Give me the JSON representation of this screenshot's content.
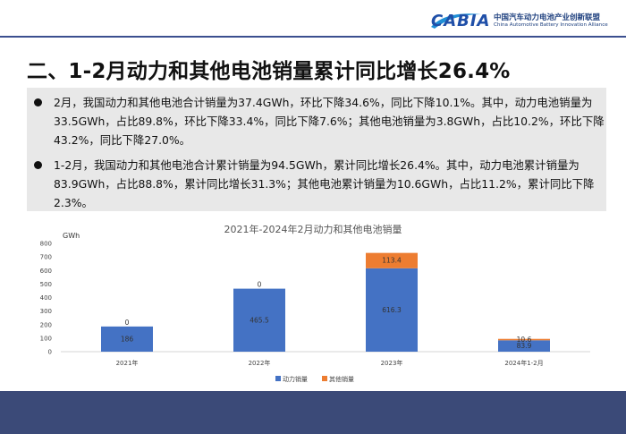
{
  "header": {
    "logo_text": "CABIA",
    "org_name_cn": "中国汽车动力电池产业创新联盟",
    "org_name_en": "China Automotive Battery Innovation Alliance"
  },
  "title": "二、1-2月动力和其他电池销量累计同比增长26.4%",
  "bullets": [
    "2月，我国动力和其他电池合计销量为37.4GWh，环比下降34.6%，同比下降10.1%。其中，动力电池销量为33.5GWh，占比89.8%，环比下降33.4%，同比下降7.6%；其他电池销量为3.8GWh，占比10.2%，环比下降43.2%，同比下降27.0%。",
    "1-2月，我国动力和其他电池合计累计销量为94.5GWh，累计同比增长26.4%。其中，动力电池累计销量为83.9GWh，占比88.8%，累计同比增长31.3%；其他电池累计销量为10.6GWh，占比11.2%，累计同比下降2.3%。"
  ],
  "chart_data": {
    "type": "bar",
    "stacked": true,
    "title": "2021年-2024年2月动力和其他电池销量",
    "ylabel": "GWh",
    "ylim": [
      0,
      800
    ],
    "yticks": [
      0,
      100,
      200,
      300,
      400,
      500,
      600,
      700,
      800
    ],
    "categories": [
      "2021年",
      "2022年",
      "2023年",
      "2024年1-2月"
    ],
    "series": [
      {
        "name": "动力销量",
        "color": "#4472c4",
        "values": [
          186,
          465.5,
          616.3,
          83.9
        ],
        "labels": [
          "186",
          "465.5",
          "616.3",
          "83.9"
        ]
      },
      {
        "name": "其他销量",
        "color": "#ed7d31",
        "values": [
          0,
          0,
          113.4,
          10.6
        ],
        "labels": [
          "0",
          "0",
          "113.4",
          "10.6"
        ]
      }
    ],
    "legend_position": "bottom",
    "grid": false
  }
}
